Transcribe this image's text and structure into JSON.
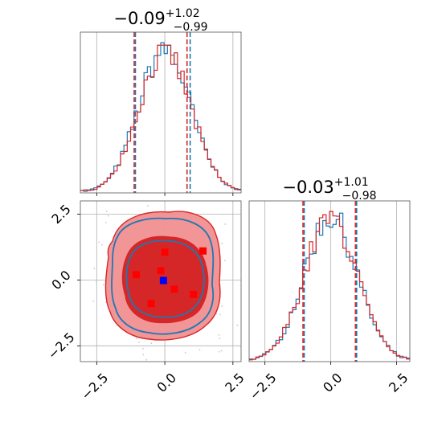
{
  "chart_data": {
    "type": "corner",
    "parameters": 2,
    "colors": {
      "first": "#1f77b4",
      "second": "#d62728",
      "blue_marker": "#0000ff",
      "red_marker": "#ff0000"
    },
    "series": [
      {
        "color": "#1f77b4",
        "quantiles": [
          -1.08,
          0.93
        ],
        "linestyle": "dashed"
      },
      {
        "color": "#d62728",
        "quantiles": [
          -1.08,
          0.86
        ],
        "linestyle": "dashed"
      }
    ],
    "panels": [
      {
        "kind": "histogram",
        "row": 0,
        "col": 0,
        "title": {
          "main": "−0.09",
          "upper": "+1.02",
          "lower": "−0.99"
        },
        "xlim": [
          -3.1,
          2.8
        ],
        "xticks": [
          -2.5,
          0.0,
          2.5
        ],
        "tick_labels_shown": false,
        "grid": true,
        "quantiles_red": [
          -1.08,
          0.86
        ],
        "quantiles_blue": [
          -1.08,
          0.93
        ]
      },
      {
        "kind": "contour",
        "row": 1,
        "col": 0,
        "xlim": [
          -3.1,
          2.8
        ],
        "ylim": [
          -3.1,
          3.0
        ],
        "xticks": [
          -2.5,
          0.0,
          2.5
        ],
        "yticks": [
          -2.5,
          0.0,
          2.5
        ],
        "xtick_labels": [
          "−2.5",
          "0.0",
          "2.5"
        ],
        "ytick_labels": [
          "−2.5",
          "0.0",
          "2.5"
        ],
        "grid": true,
        "contour_levels": [
          0.39,
          0.86
        ],
        "markers_red": [
          [
            -1.05,
            0.2
          ],
          [
            -0.15,
            0.35
          ],
          [
            0.0,
            1.05
          ],
          [
            1.4,
            1.1
          ],
          [
            0.35,
            -0.35
          ],
          [
            1.05,
            -0.55
          ],
          [
            -0.5,
            -0.9
          ]
        ],
        "markers_blue": [
          [
            -0.05,
            -0.02
          ]
        ]
      },
      {
        "kind": "histogram",
        "row": 1,
        "col": 1,
        "title": {
          "main": "−0.03",
          "upper": "+1.01",
          "lower": "−0.98"
        },
        "xlim": [
          -3.1,
          3.0
        ],
        "xticks": [
          -2.5,
          0.0,
          2.5
        ],
        "xtick_labels": [
          "−2.5",
          "0.0",
          "2.5"
        ],
        "grid": true,
        "quantiles_red": [
          -1.01,
          0.98
        ],
        "quantiles_blue": [
          -1.01,
          0.98
        ]
      }
    ]
  }
}
